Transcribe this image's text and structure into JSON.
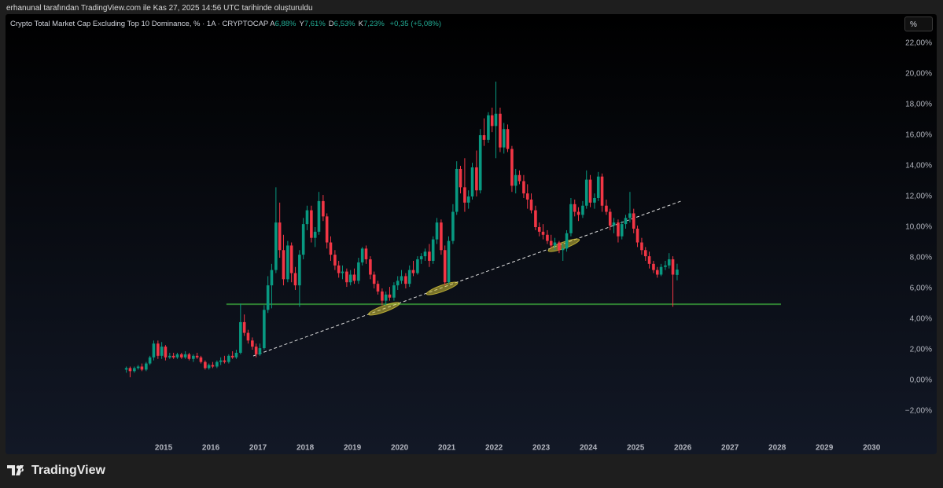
{
  "page": {
    "attribution": "erhanunal tarafından TradingView.com ile Kas 27, 2025 14:56 UTC tarihinde oluşturuldu",
    "logo": "TradingView",
    "scale_button": "%"
  },
  "chart_data": {
    "type": "candlestick",
    "title": "Crypto Total Market Cap Excluding Top 10 Dominance, % · 1A · CRYPTOCAP",
    "ohlc_header": [
      {
        "label": "A",
        "value": "6,88%"
      },
      {
        "label": "Y",
        "value": "7,61%"
      },
      {
        "label": "D",
        "value": "6,53%"
      },
      {
        "label": "K",
        "value": "7,23%"
      }
    ],
    "change": "+0,35 (+5,08%)",
    "up_color": "#089981",
    "down_color": "#f23645",
    "xlim": [
      2011.65,
      2030.53
    ],
    "ylim": [
      -4.82,
      23.9
    ],
    "xticks": [
      2015,
      2016,
      2017,
      2018,
      2019,
      2020,
      2021,
      2022,
      2023,
      2024,
      2025,
      2026,
      2027,
      2028,
      2029,
      2030
    ],
    "yticks": [
      {
        "value": -2,
        "label": "−2,00%"
      },
      {
        "value": 0,
        "label": "0,00%"
      },
      {
        "value": 2,
        "label": "2,00%"
      },
      {
        "value": 4,
        "label": "4,00%"
      },
      {
        "value": 6,
        "label": "6,00%"
      },
      {
        "value": 8,
        "label": "8,00%"
      },
      {
        "value": 10,
        "label": "10,00%"
      },
      {
        "value": 12,
        "label": "12,00%"
      },
      {
        "value": 14,
        "label": "14,00%"
      },
      {
        "value": 16,
        "label": "16,00%"
      },
      {
        "value": 18,
        "label": "18,00%"
      },
      {
        "value": 20,
        "label": "20,00%"
      },
      {
        "value": 22,
        "label": "22,00%"
      }
    ],
    "x": [
      2014.21,
      2014.29,
      2014.38,
      2014.46,
      2014.54,
      2014.63,
      2014.71,
      2014.79,
      2014.88,
      2014.96,
      2015.04,
      2015.13,
      2015.21,
      2015.29,
      2015.38,
      2015.46,
      2015.54,
      2015.63,
      2015.71,
      2015.79,
      2015.88,
      2015.96,
      2016.04,
      2016.13,
      2016.21,
      2016.29,
      2016.38,
      2016.46,
      2016.54,
      2016.63,
      2016.71,
      2016.79,
      2016.88,
      2016.96,
      2017.04,
      2017.13,
      2017.21,
      2017.29,
      2017.38,
      2017.46,
      2017.54,
      2017.63,
      2017.71,
      2017.79,
      2017.88,
      2017.96,
      2018.04,
      2018.13,
      2018.21,
      2018.29,
      2018.38,
      2018.46,
      2018.54,
      2018.63,
      2018.71,
      2018.79,
      2018.88,
      2018.96,
      2019.04,
      2019.13,
      2019.21,
      2019.29,
      2019.38,
      2019.46,
      2019.54,
      2019.63,
      2019.71,
      2019.79,
      2019.88,
      2019.96,
      2020.04,
      2020.13,
      2020.21,
      2020.29,
      2020.38,
      2020.46,
      2020.54,
      2020.63,
      2020.71,
      2020.79,
      2020.88,
      2020.96,
      2021.04,
      2021.13,
      2021.21,
      2021.29,
      2021.38,
      2021.46,
      2021.54,
      2021.63,
      2021.71,
      2021.79,
      2021.88,
      2021.96,
      2022.04,
      2022.13,
      2022.21,
      2022.29,
      2022.38,
      2022.46,
      2022.54,
      2022.63,
      2022.71,
      2022.79,
      2022.88,
      2022.96,
      2023.04,
      2023.13,
      2023.21,
      2023.29,
      2023.38,
      2023.46,
      2023.54,
      2023.63,
      2023.71,
      2023.79,
      2023.88,
      2023.96,
      2024.04,
      2024.13,
      2024.21,
      2024.29,
      2024.38,
      2024.46,
      2024.54,
      2024.63,
      2024.71,
      2024.79,
      2024.88,
      2024.96,
      2025.04,
      2025.13,
      2025.21,
      2025.29,
      2025.38,
      2025.46,
      2025.54,
      2025.63,
      2025.71,
      2025.79,
      2025.88
    ],
    "open": [
      0.7,
      0.8,
      0.6,
      0.8,
      0.9,
      0.7,
      1.1,
      1.5,
      2.4,
      1.6,
      2.2,
      1.5,
      1.6,
      1.5,
      1.7,
      1.5,
      1.7,
      1.4,
      1.6,
      1.5,
      1.2,
      0.8,
      1.0,
      0.9,
      1.2,
      1.3,
      1.2,
      1.6,
      1.5,
      1.8,
      3.8,
      3.1,
      2.6,
      2.2,
      1.7,
      2.1,
      4.6,
      6.2,
      7.2,
      10.3,
      8.5,
      6.6,
      8.8,
      7.0,
      6.2,
      8.2,
      10.2,
      11.1,
      9.3,
      9.7,
      11.7,
      10.7,
      9.0,
      8.2,
      7.5,
      7.0,
      7.1,
      6.4,
      6.9,
      6.5,
      7.7,
      8.6,
      7.9,
      6.9,
      6.3,
      5.8,
      5.2,
      5.6,
      5.4,
      6.2,
      6.5,
      6.8,
      6.3,
      7.2,
      7.0,
      7.9,
      8.1,
      8.4,
      7.8,
      9.2,
      10.3,
      8.5,
      6.4,
      9.1,
      11.0,
      13.8,
      12.6,
      11.6,
      12.0,
      13.9,
      12.4,
      16.0,
      15.7,
      17.3,
      16.6,
      17.4,
      15.2,
      16.4,
      15.1,
      12.7,
      13.4,
      13.0,
      12.2,
      11.8,
      11.1,
      10.0,
      9.7,
      9.5,
      9.1,
      8.8,
      9.0,
      8.5,
      8.6,
      9.6,
      11.5,
      11.0,
      10.8,
      11.4,
      13.1,
      11.6,
      11.9,
      13.3,
      11.4,
      11.0,
      10.1,
      10.3,
      9.4,
      10.2,
      10.6,
      10.9,
      9.9,
      9.0,
      8.5,
      8.1,
      7.6,
      7.2,
      6.9,
      7.4,
      7.5,
      7.9,
      6.88
    ],
    "high": [
      0.9,
      0.9,
      0.9,
      1.0,
      1.1,
      1.2,
      1.6,
      2.6,
      2.6,
      2.5,
      2.3,
      1.8,
      1.8,
      1.8,
      1.8,
      1.9,
      1.8,
      1.7,
      1.8,
      1.6,
      1.3,
      1.1,
      1.2,
      1.3,
      1.5,
      1.6,
      1.7,
      1.9,
      2.0,
      5.0,
      4.3,
      3.3,
      2.8,
      2.4,
      2.4,
      4.9,
      6.8,
      7.6,
      12.6,
      11.6,
      9.5,
      9.1,
      9.0,
      7.4,
      8.5,
      10.6,
      11.4,
      11.4,
      10.0,
      12.3,
      12.1,
      10.9,
      9.4,
      8.5,
      7.8,
      7.5,
      7.3,
      7.2,
      7.3,
      8.0,
      8.7,
      8.8,
      8.1,
      7.1,
      6.5,
      6.0,
      5.8,
      6.1,
      6.4,
      6.8,
      7.2,
      7.0,
      7.5,
      7.8,
      8.1,
      8.3,
      8.6,
      8.9,
      9.4,
      10.6,
      10.5,
      8.8,
      9.4,
      11.5,
      14.3,
      14.0,
      14.5,
      12.4,
      14.2,
      15.0,
      16.4,
      17.1,
      17.5,
      17.8,
      19.5,
      17.8,
      16.8,
      16.7,
      15.3,
      13.8,
      13.7,
      13.4,
      12.8,
      12.2,
      11.4,
      10.3,
      10.2,
      9.8,
      9.5,
      9.3,
      9.1,
      8.9,
      9.8,
      11.9,
      11.8,
      11.3,
      11.7,
      13.7,
      13.4,
      12.2,
      13.6,
      13.5,
      11.8,
      11.2,
      10.6,
      10.5,
      10.4,
      10.8,
      12.3,
      11.2,
      10.1,
      9.3,
      8.7,
      8.4,
      7.8,
      7.4,
      7.6,
      7.8,
      8.3,
      8.1,
      7.61
    ],
    "low": [
      0.5,
      0.2,
      0.5,
      0.7,
      0.6,
      0.6,
      1.0,
      1.3,
      1.4,
      1.4,
      1.3,
      1.4,
      1.4,
      1.4,
      1.4,
      1.4,
      1.3,
      1.2,
      1.4,
      1.1,
      0.7,
      0.7,
      0.8,
      0.8,
      1.0,
      1.1,
      1.1,
      1.4,
      1.4,
      1.7,
      2.9,
      2.4,
      2.0,
      1.5,
      1.6,
      2.0,
      4.4,
      4.7,
      7.0,
      8.0,
      6.2,
      6.4,
      6.4,
      5.9,
      4.8,
      7.9,
      9.8,
      9.0,
      8.7,
      9.5,
      10.4,
      8.6,
      7.8,
      7.2,
      6.7,
      6.6,
      6.1,
      6.2,
      6.3,
      6.3,
      7.5,
      7.6,
      6.6,
      6.0,
      5.6,
      4.9,
      4.9,
      5.2,
      5.2,
      5.9,
      6.3,
      6.0,
      6.1,
      6.8,
      6.9,
      7.6,
      7.8,
      7.4,
      7.6,
      8.9,
      8.2,
      6.2,
      6.3,
      8.9,
      10.8,
      12.2,
      11.0,
      11.2,
      11.8,
      12.0,
      12.2,
      15.3,
      15.5,
      16.2,
      14.5,
      14.9,
      14.8,
      14.9,
      12.3,
      12.2,
      12.8,
      11.9,
      11.2,
      10.9,
      9.8,
      9.4,
      9.2,
      8.9,
      8.6,
      8.5,
      8.3,
      7.8,
      8.4,
      9.4,
      10.7,
      10.4,
      10.6,
      11.2,
      11.3,
      11.2,
      11.7,
      11.0,
      10.8,
      9.8,
      9.6,
      9.0,
      9.2,
      9.9,
      10.3,
      9.6,
      8.7,
      8.2,
      7.8,
      7.3,
      7.0,
      6.7,
      6.8,
      7.2,
      7.3,
      4.8,
      6.53
    ],
    "close": [
      0.8,
      0.6,
      0.8,
      0.9,
      0.7,
      1.1,
      1.5,
      2.4,
      1.6,
      2.2,
      1.5,
      1.6,
      1.5,
      1.7,
      1.5,
      1.7,
      1.4,
      1.6,
      1.5,
      1.2,
      0.8,
      1.0,
      0.9,
      1.2,
      1.3,
      1.2,
      1.6,
      1.5,
      1.8,
      3.8,
      3.1,
      2.6,
      2.2,
      1.7,
      2.1,
      4.6,
      6.2,
      7.2,
      10.3,
      8.5,
      6.6,
      8.8,
      7.0,
      6.2,
      8.2,
      10.2,
      11.1,
      9.3,
      9.7,
      11.7,
      10.7,
      9.0,
      8.2,
      7.5,
      7.0,
      7.1,
      6.4,
      6.9,
      6.5,
      7.7,
      8.6,
      7.9,
      6.9,
      6.3,
      5.8,
      5.2,
      5.6,
      5.4,
      6.2,
      6.5,
      6.8,
      6.3,
      7.2,
      7.0,
      7.9,
      8.1,
      8.4,
      7.8,
      9.2,
      10.3,
      8.5,
      6.4,
      9.1,
      11.0,
      13.8,
      12.6,
      11.6,
      12.0,
      13.9,
      12.4,
      16.0,
      15.7,
      17.3,
      16.6,
      17.4,
      15.2,
      16.4,
      15.1,
      12.7,
      13.4,
      13.0,
      12.2,
      11.8,
      11.1,
      10.0,
      9.7,
      9.5,
      9.1,
      8.8,
      9.0,
      8.5,
      8.6,
      9.6,
      11.5,
      11.0,
      10.8,
      11.4,
      13.1,
      11.6,
      11.9,
      13.3,
      11.4,
      11.0,
      10.1,
      10.3,
      9.4,
      10.2,
      10.6,
      10.9,
      9.9,
      9.0,
      8.5,
      8.1,
      7.6,
      7.2,
      6.9,
      7.4,
      7.5,
      7.9,
      6.9,
      7.23
    ],
    "drawings": {
      "horizontal_line": {
        "x": [
          2016.33,
          2028.08
        ],
        "y": 4.97,
        "color": "#2e7d32"
      },
      "trend_line": {
        "x": [
          2016.9,
          2026.0
        ],
        "y": [
          1.59,
          11.74
        ],
        "color": "#e0e0e0"
      },
      "highlights": {
        "x": [
          2019.67,
          2020.9,
          2023.48
        ],
        "y": [
          4.67,
          6.0,
          8.82
        ],
        "color": "#d4c43a"
      }
    }
  }
}
